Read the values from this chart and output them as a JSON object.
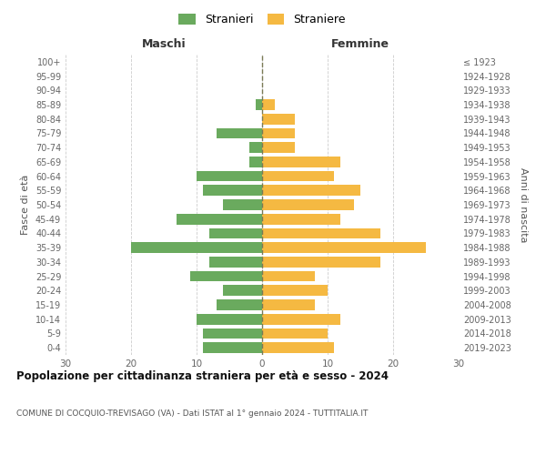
{
  "age_groups": [
    "0-4",
    "5-9",
    "10-14",
    "15-19",
    "20-24",
    "25-29",
    "30-34",
    "35-39",
    "40-44",
    "45-49",
    "50-54",
    "55-59",
    "60-64",
    "65-69",
    "70-74",
    "75-79",
    "80-84",
    "85-89",
    "90-94",
    "95-99",
    "100+"
  ],
  "birth_years": [
    "2019-2023",
    "2014-2018",
    "2009-2013",
    "2004-2008",
    "1999-2003",
    "1994-1998",
    "1989-1993",
    "1984-1988",
    "1979-1983",
    "1974-1978",
    "1969-1973",
    "1964-1968",
    "1959-1963",
    "1954-1958",
    "1949-1953",
    "1944-1948",
    "1939-1943",
    "1934-1938",
    "1929-1933",
    "1924-1928",
    "≤ 1923"
  ],
  "males": [
    9,
    9,
    10,
    7,
    6,
    11,
    8,
    20,
    8,
    13,
    6,
    9,
    10,
    2,
    2,
    7,
    0,
    1,
    0,
    0,
    0
  ],
  "females": [
    11,
    10,
    12,
    8,
    10,
    8,
    18,
    25,
    18,
    12,
    14,
    15,
    11,
    12,
    5,
    5,
    5,
    2,
    0,
    0,
    0
  ],
  "male_color": "#6aaa5e",
  "female_color": "#f5b942",
  "background_color": "#ffffff",
  "grid_color": "#cccccc",
  "center_line_color": "#7a7a55",
  "title": "Popolazione per cittadinanza straniera per età e sesso - 2024",
  "subtitle": "COMUNE DI COCQUIO-TREVISAGO (VA) - Dati ISTAT al 1° gennaio 2024 - TUTTITALIA.IT",
  "xlabel_left": "Maschi",
  "xlabel_right": "Femmine",
  "ylabel_left": "Fasce di età",
  "ylabel_right": "Anni di nascita",
  "legend_males": "Stranieri",
  "legend_females": "Straniere",
  "xlim": 30,
  "bar_height": 0.75
}
